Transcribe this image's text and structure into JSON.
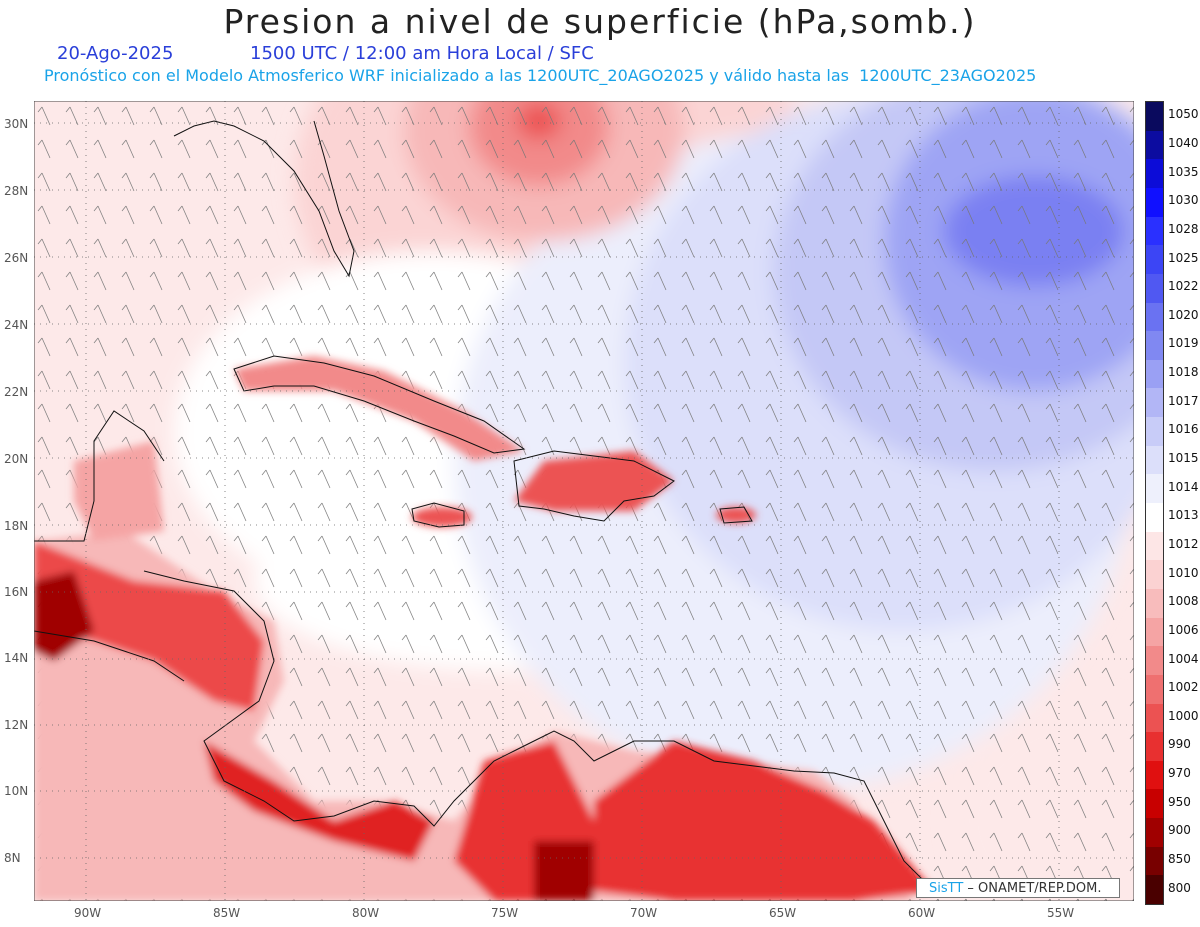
{
  "title": "Presion a nivel de superficie (hPa,somb.)",
  "date": "20-Ago-2025",
  "valid": "1500 UTC / 12:00 am Hora Local / SFC",
  "forecast": "Pronóstico con el Modelo Atmosferico WRF inicializado a las 1200UTC_20AGO2025 y válido hasta las  1200UTC_23AGO2025",
  "lat_labels": [
    "30N",
    "28N",
    "26N",
    "24N",
    "22N",
    "20N",
    "18N",
    "16N",
    "14N",
    "12N",
    "10N",
    "8N"
  ],
  "lon_labels": [
    "90W",
    "85W",
    "80W",
    "75W",
    "70W",
    "65W",
    "60W",
    "55W"
  ],
  "legend": {
    "levels": [
      "1050",
      "1040",
      "1035",
      "1030",
      "1028",
      "1025",
      "1022",
      "1020",
      "1019",
      "1018",
      "1017",
      "1016",
      "1015",
      "1014",
      "1013",
      "1012",
      "1010",
      "1008",
      "1006",
      "1004",
      "1002",
      "1000",
      "990",
      "970",
      "950",
      "900",
      "850",
      "800"
    ],
    "colors": [
      "#0a0a5e",
      "#0c0ca0",
      "#0c0cd8",
      "#1010ff",
      "#2a30ff",
      "#3c45f5",
      "#5058f2",
      "#6a72f2",
      "#8088f2",
      "#9aa0f4",
      "#b2b6f6",
      "#c8ccf8",
      "#dcdffa",
      "#eef0fc",
      "#ffffff",
      "#fde6e6",
      "#fbd2d2",
      "#f8bcbc",
      "#f5a4a4",
      "#f28a8a",
      "#ef7070",
      "#ec5252",
      "#e83030",
      "#e01010",
      "#c80000",
      "#a00000",
      "#780000",
      "#4a0000"
    ]
  },
  "badge": {
    "logo": "SisTT",
    "text": " – ONAMET/REP.DOM."
  }
}
